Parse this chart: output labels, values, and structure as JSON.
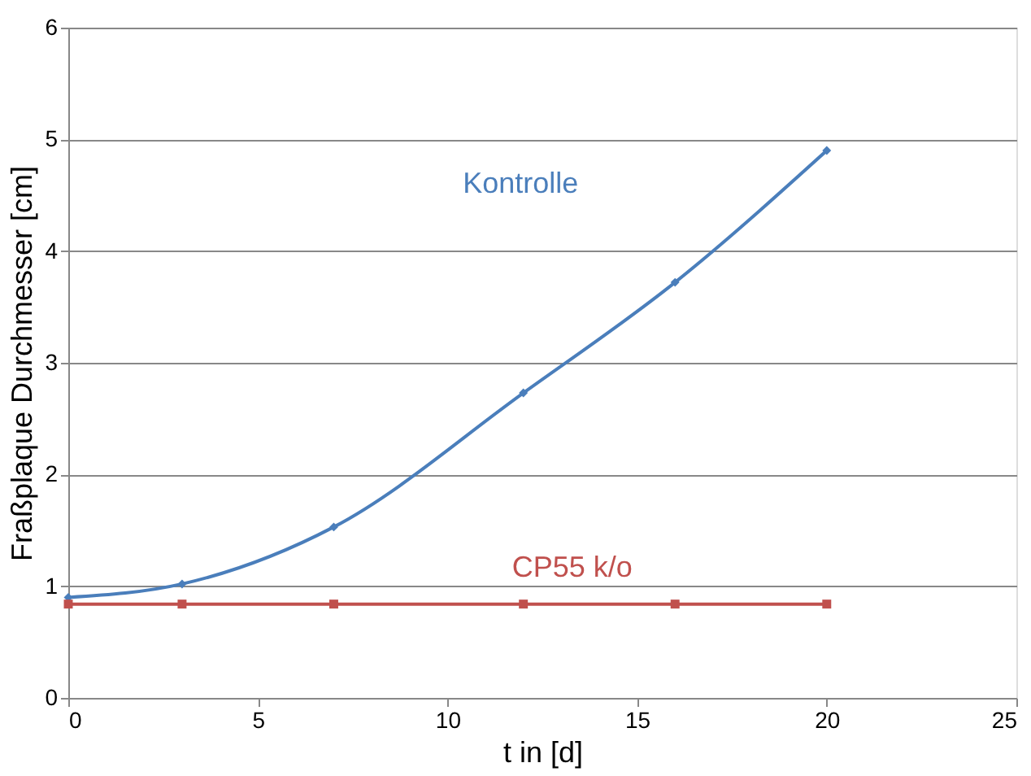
{
  "chart_data": {
    "type": "line",
    "xlabel": "t in [d]",
    "ylabel": "Fraßplaque Durchmesser [cm]",
    "x": [
      0,
      3,
      7,
      12,
      16,
      20
    ],
    "series": [
      {
        "name": "Kontrolle",
        "color": "#4a7ebb",
        "marker": "diamond",
        "values": [
          0.9,
          1.02,
          1.53,
          2.73,
          3.72,
          4.9
        ]
      },
      {
        "name": "CP55 k/o",
        "color": "#c0504d",
        "marker": "square",
        "values": [
          0.84,
          0.84,
          0.84,
          0.84,
          0.84,
          0.84
        ]
      }
    ],
    "xlim": [
      0,
      25
    ],
    "xticks": [
      0,
      5,
      10,
      15,
      20,
      25
    ],
    "ylim": [
      0,
      6
    ],
    "yticks": [
      0,
      1,
      2,
      3,
      4,
      5,
      6
    ],
    "grid": "y",
    "line_style": "solid"
  }
}
